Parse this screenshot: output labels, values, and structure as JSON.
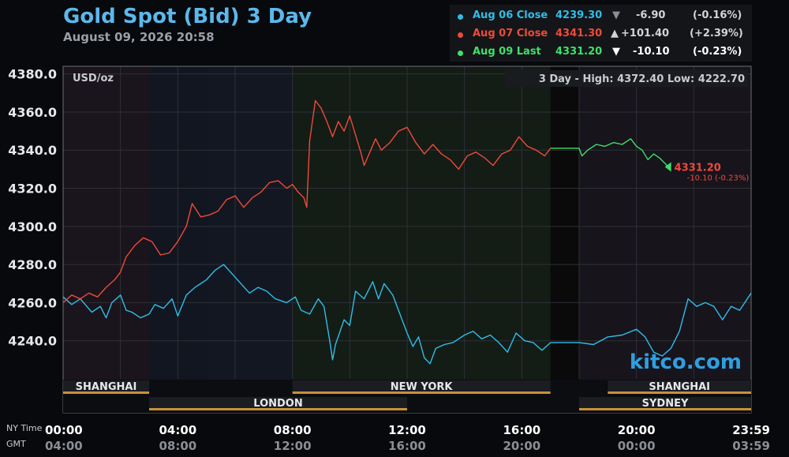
{
  "header": {
    "title": "Gold Spot (Bid) 3 Day",
    "subtitle": "August 09, 2026 20:58"
  },
  "legend": [
    {
      "label": "Aug 06 Close",
      "price": "4239.30",
      "arrow": "▼",
      "change": "-6.90",
      "pct": "(-0.16%)",
      "color": "#2fbde8",
      "arrow_color": "#8a8f96"
    },
    {
      "label": "Aug 07 Close",
      "price": "4341.30",
      "arrow": "▲",
      "change": "+101.40",
      "pct": "(+2.39%)",
      "color": "#ee4a3a",
      "arrow_color": "#d0d4d9"
    },
    {
      "label": "Aug 09 Last",
      "price": "4331.20",
      "arrow": "▼",
      "change": "-10.10",
      "pct": "(-0.23%)",
      "color": "#3ee06a",
      "arrow_color": "#ffffff"
    }
  ],
  "chart_info": {
    "unit": "USD/oz",
    "range_label": "3 Day - High: 4372.40  Low: 4222.70",
    "watermark": "kitco.com",
    "last_price": "4331.20",
    "last_change": "-10.10 (-0.23%)"
  },
  "sessions": [
    {
      "name": "SHANGHAI",
      "row": 0,
      "start": 0,
      "end": 3
    },
    {
      "name": "NEW YORK",
      "row": 0,
      "start": 8,
      "end": 17
    },
    {
      "name": "SHANGHAI",
      "row": 0,
      "start": 19,
      "end": 24
    },
    {
      "name": "LONDON",
      "row": 1,
      "start": 3,
      "end": 12
    },
    {
      "name": "SYDNEY",
      "row": 1,
      "start": 18,
      "end": 24
    }
  ],
  "time_axis": {
    "ny_label": "NY Time",
    "gmt_label": "GMT",
    "ny_ticks": [
      "00:00",
      "04:00",
      "08:00",
      "12:00",
      "16:00",
      "20:00",
      "23:59"
    ],
    "gmt_ticks": [
      "04:00",
      "08:00",
      "12:00",
      "16:00",
      "20:00",
      "00:00",
      "03:59"
    ],
    "tick_hours": [
      0,
      4,
      8,
      12,
      16,
      20,
      24
    ]
  },
  "chart_data": {
    "type": "line",
    "title": "Gold Spot (Bid) 3 Day",
    "ylabel": "USD/oz",
    "xlabel": "NY Time",
    "ylim": [
      4220,
      4384
    ],
    "xlim": [
      0,
      24
    ],
    "y_ticks": [
      "4240.0",
      "4260.0",
      "4280.0",
      "4300.0",
      "4320.0",
      "4340.0",
      "4360.0",
      "4380.0"
    ],
    "y_tick_values": [
      4240,
      4260,
      4280,
      4300,
      4320,
      4340,
      4360,
      4380
    ],
    "grid": true,
    "series": [
      {
        "name": "Aug 06 Close",
        "color": "#2fbde8",
        "points": [
          [
            0,
            4263
          ],
          [
            0.3,
            4259
          ],
          [
            0.6,
            4262
          ],
          [
            1.0,
            4255
          ],
          [
            1.3,
            4258
          ],
          [
            1.5,
            4252
          ],
          [
            1.7,
            4260
          ],
          [
            2.0,
            4264
          ],
          [
            2.2,
            4256
          ],
          [
            2.4,
            4255
          ],
          [
            2.7,
            4252
          ],
          [
            3.0,
            4254
          ],
          [
            3.2,
            4259
          ],
          [
            3.5,
            4257
          ],
          [
            3.8,
            4262
          ],
          [
            4.0,
            4253
          ],
          [
            4.3,
            4264
          ],
          [
            4.6,
            4268
          ],
          [
            5.0,
            4272
          ],
          [
            5.3,
            4277
          ],
          [
            5.6,
            4280
          ],
          [
            5.9,
            4275
          ],
          [
            6.2,
            4270
          ],
          [
            6.5,
            4265
          ],
          [
            6.8,
            4268
          ],
          [
            7.1,
            4266
          ],
          [
            7.4,
            4262
          ],
          [
            7.8,
            4260
          ],
          [
            8.1,
            4263
          ],
          [
            8.3,
            4256
          ],
          [
            8.6,
            4254
          ],
          [
            8.9,
            4262
          ],
          [
            9.1,
            4258
          ],
          [
            9.3,
            4240
          ],
          [
            9.4,
            4230
          ],
          [
            9.5,
            4238
          ],
          [
            9.8,
            4251
          ],
          [
            10.0,
            4248
          ],
          [
            10.2,
            4266
          ],
          [
            10.5,
            4262
          ],
          [
            10.8,
            4271
          ],
          [
            11.0,
            4262
          ],
          [
            11.2,
            4270
          ],
          [
            11.5,
            4264
          ],
          [
            11.8,
            4252
          ],
          [
            12.0,
            4244
          ],
          [
            12.2,
            4237
          ],
          [
            12.4,
            4242
          ],
          [
            12.6,
            4231
          ],
          [
            12.8,
            4228
          ],
          [
            13.0,
            4236
          ],
          [
            13.3,
            4238
          ],
          [
            13.6,
            4239
          ],
          [
            14.0,
            4243
          ],
          [
            14.3,
            4245
          ],
          [
            14.6,
            4241
          ],
          [
            14.9,
            4243
          ],
          [
            15.2,
            4239
          ],
          [
            15.5,
            4234
          ],
          [
            15.8,
            4244
          ],
          [
            16.1,
            4240
          ],
          [
            16.4,
            4239
          ],
          [
            16.7,
            4235
          ],
          [
            17.0,
            4239
          ],
          [
            17.5,
            4239
          ],
          [
            18.0,
            4239
          ],
          [
            18.5,
            4238
          ],
          [
            19.0,
            4242
          ],
          [
            19.5,
            4243
          ],
          [
            20.0,
            4246
          ],
          [
            20.3,
            4242
          ],
          [
            20.6,
            4234
          ],
          [
            20.9,
            4232
          ],
          [
            21.2,
            4236
          ],
          [
            21.5,
            4245
          ],
          [
            21.8,
            4262
          ],
          [
            22.1,
            4258
          ],
          [
            22.4,
            4260
          ],
          [
            22.7,
            4258
          ],
          [
            23.0,
            4251
          ],
          [
            23.3,
            4258
          ],
          [
            23.6,
            4256
          ],
          [
            24.0,
            4265
          ]
        ]
      },
      {
        "name": "Aug 07 Close",
        "color": "#ee4a3a",
        "points": [
          [
            0,
            4260
          ],
          [
            0.3,
            4264
          ],
          [
            0.6,
            4262
          ],
          [
            0.9,
            4265
          ],
          [
            1.2,
            4263
          ],
          [
            1.5,
            4268
          ],
          [
            1.8,
            4272
          ],
          [
            2.0,
            4276
          ],
          [
            2.2,
            4284
          ],
          [
            2.5,
            4290
          ],
          [
            2.8,
            4294
          ],
          [
            3.1,
            4292
          ],
          [
            3.4,
            4285
          ],
          [
            3.7,
            4286
          ],
          [
            4.0,
            4292
          ],
          [
            4.3,
            4300
          ],
          [
            4.5,
            4312
          ],
          [
            4.8,
            4305
          ],
          [
            5.1,
            4306
          ],
          [
            5.4,
            4308
          ],
          [
            5.7,
            4314
          ],
          [
            6.0,
            4316
          ],
          [
            6.3,
            4310
          ],
          [
            6.6,
            4315
          ],
          [
            6.9,
            4318
          ],
          [
            7.2,
            4323
          ],
          [
            7.5,
            4324
          ],
          [
            7.8,
            4320
          ],
          [
            8.0,
            4322
          ],
          [
            8.2,
            4318
          ],
          [
            8.4,
            4315
          ],
          [
            8.5,
            4310
          ],
          [
            8.6,
            4345
          ],
          [
            8.8,
            4366
          ],
          [
            9.0,
            4362
          ],
          [
            9.2,
            4355
          ],
          [
            9.4,
            4347
          ],
          [
            9.6,
            4355
          ],
          [
            9.8,
            4350
          ],
          [
            10.0,
            4358
          ],
          [
            10.2,
            4348
          ],
          [
            10.4,
            4338
          ],
          [
            10.5,
            4332
          ],
          [
            10.7,
            4339
          ],
          [
            10.9,
            4346
          ],
          [
            11.1,
            4340
          ],
          [
            11.4,
            4344
          ],
          [
            11.7,
            4350
          ],
          [
            12.0,
            4352
          ],
          [
            12.3,
            4344
          ],
          [
            12.6,
            4338
          ],
          [
            12.9,
            4343
          ],
          [
            13.2,
            4338
          ],
          [
            13.5,
            4335
          ],
          [
            13.8,
            4330
          ],
          [
            14.1,
            4337
          ],
          [
            14.4,
            4339
          ],
          [
            14.7,
            4336
          ],
          [
            15.0,
            4332
          ],
          [
            15.3,
            4338
          ],
          [
            15.6,
            4340
          ],
          [
            15.9,
            4347
          ],
          [
            16.2,
            4342
          ],
          [
            16.5,
            4340
          ],
          [
            16.8,
            4337
          ],
          [
            17.0,
            4341
          ]
        ]
      },
      {
        "name": "Aug 09 Last",
        "color": "#3ee06a",
        "points": [
          [
            17.0,
            4341
          ],
          [
            17.5,
            4341
          ],
          [
            18.0,
            4341
          ],
          [
            18.1,
            4337
          ],
          [
            18.3,
            4340
          ],
          [
            18.6,
            4343
          ],
          [
            18.9,
            4342
          ],
          [
            19.2,
            4344
          ],
          [
            19.5,
            4343
          ],
          [
            19.8,
            4346
          ],
          [
            20.0,
            4342
          ],
          [
            20.2,
            4340
          ],
          [
            20.4,
            4335
          ],
          [
            20.6,
            4338
          ],
          [
            20.8,
            4336
          ],
          [
            21.0,
            4333
          ],
          [
            21.1,
            4331.2
          ]
        ]
      }
    ]
  }
}
